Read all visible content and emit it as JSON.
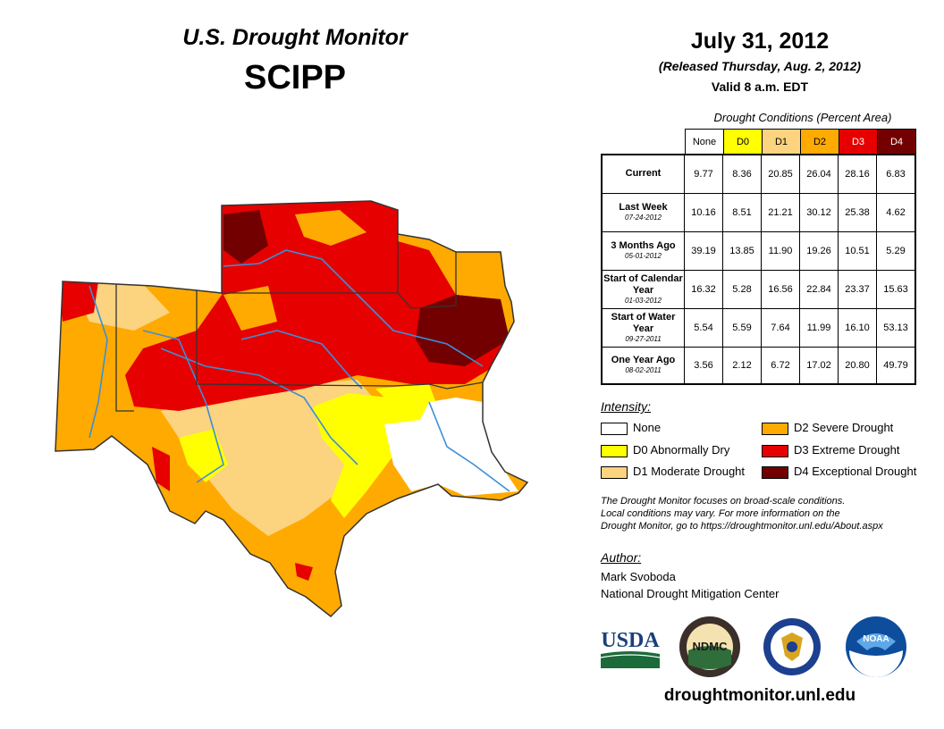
{
  "header": {
    "title": "U.S. Drought Monitor",
    "region": "SCIPP",
    "date": "July 31, 2012",
    "released": "(Released Thursday, Aug. 2, 2012)",
    "valid": "Valid 8 a.m. EDT"
  },
  "table": {
    "caption": "Drought Conditions (Percent Area)",
    "columns": [
      "None",
      "D0",
      "D1",
      "D2",
      "D3",
      "D4"
    ],
    "column_colors": [
      "#ffffff",
      "#ffff00",
      "#fcd37f",
      "#ffaa00",
      "#e60000",
      "#730000"
    ],
    "rows": [
      {
        "label": "Current",
        "sub": "",
        "values": [
          "9.77",
          "8.36",
          "20.85",
          "26.04",
          "28.16",
          "6.83"
        ]
      },
      {
        "label": "Last Week",
        "sub": "07-24-2012",
        "values": [
          "10.16",
          "8.51",
          "21.21",
          "30.12",
          "25.38",
          "4.62"
        ]
      },
      {
        "label": "3 Months Ago",
        "sub": "05-01-2012",
        "values": [
          "39.19",
          "13.85",
          "11.90",
          "19.26",
          "10.51",
          "5.29"
        ]
      },
      {
        "label": "Start of Calendar Year",
        "sub": "01-03-2012",
        "values": [
          "16.32",
          "5.28",
          "16.56",
          "22.84",
          "23.37",
          "15.63"
        ]
      },
      {
        "label": "Start of Water Year",
        "sub": "09-27-2011",
        "values": [
          "5.54",
          "5.59",
          "7.64",
          "11.99",
          "16.10",
          "53.13"
        ]
      },
      {
        "label": "One Year Ago",
        "sub": "08-02-2011",
        "values": [
          "3.56",
          "2.12",
          "6.72",
          "17.02",
          "20.80",
          "49.79"
        ]
      }
    ]
  },
  "legend": {
    "heading": "Intensity:",
    "items": [
      {
        "label": "None",
        "color": "#ffffff"
      },
      {
        "label": "D0 Abnormally Dry",
        "color": "#ffff00"
      },
      {
        "label": "D1 Moderate Drought",
        "color": "#fcd37f"
      },
      {
        "label": "D2 Severe Drought",
        "color": "#ffaa00"
      },
      {
        "label": "D3 Extreme Drought",
        "color": "#e60000"
      },
      {
        "label": "D4 Exceptional Drought",
        "color": "#730000"
      }
    ]
  },
  "note": {
    "line1": "The Drought Monitor focuses on broad-scale conditions.",
    "line2": "Local conditions may vary. For more information on the",
    "line3": "Drought Monitor, go to https://droughtmonitor.unl.edu/About.aspx"
  },
  "author": {
    "heading": "Author:",
    "name": "Mark Svoboda",
    "org": "National Drought Mitigation Center"
  },
  "logos": {
    "usda": "USDA",
    "ndmc": "NDMC",
    "noaa": "NOAA"
  },
  "website": "droughtmonitor.unl.edu"
}
